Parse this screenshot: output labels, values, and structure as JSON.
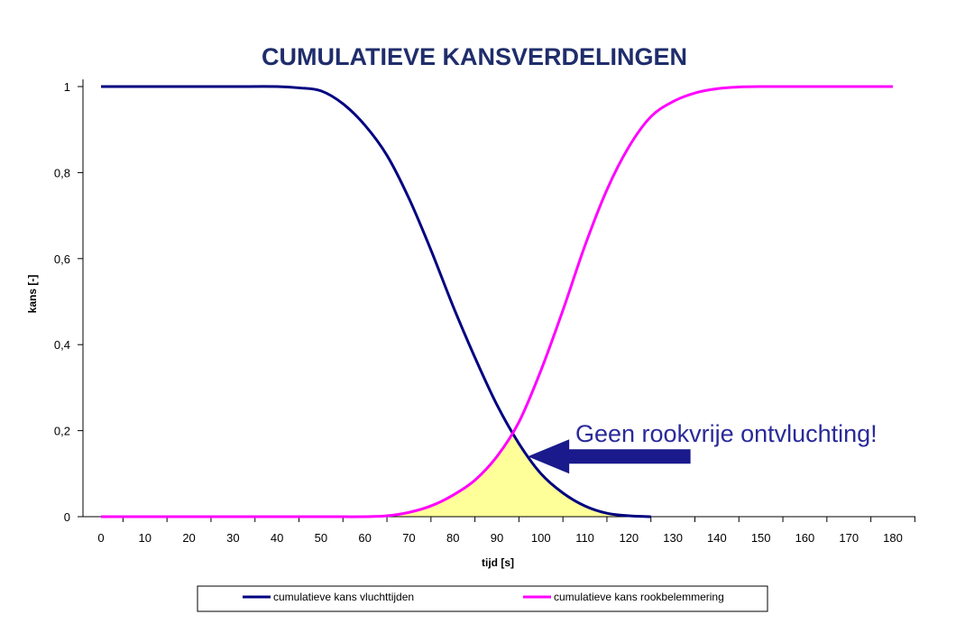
{
  "chart_data": {
    "type": "line",
    "title": "CUMULATIEVE KANSVERDELINGEN",
    "xlabel": "tijd [s]",
    "ylabel": "kans [-]",
    "xlim": [
      0,
      180
    ],
    "ylim": [
      0,
      1
    ],
    "x_ticks": [
      0,
      10,
      20,
      30,
      40,
      50,
      60,
      70,
      80,
      90,
      100,
      110,
      120,
      130,
      140,
      150,
      160,
      170,
      180
    ],
    "y_ticks": [
      {
        "value": 0,
        "label": "0"
      },
      {
        "value": 0.2,
        "label": "0,2"
      },
      {
        "value": 0.4,
        "label": "0,4"
      },
      {
        "value": 0.6,
        "label": "0,6"
      },
      {
        "value": 0.8,
        "label": "0,8"
      },
      {
        "value": 1,
        "label": "1"
      }
    ],
    "grid": false,
    "legend_position": "bottom",
    "series": [
      {
        "name": "cumulatieve kans vluchttijden",
        "color": "#000080",
        "x": [
          0,
          10,
          20,
          30,
          40,
          45,
          50,
          55,
          60,
          65,
          70,
          75,
          80,
          85,
          90,
          95,
          100,
          105,
          110,
          115,
          120,
          125
        ],
        "y": [
          1,
          1,
          1,
          1,
          1,
          0.997,
          0.99,
          0.96,
          0.91,
          0.84,
          0.74,
          0.62,
          0.49,
          0.37,
          0.26,
          0.17,
          0.1,
          0.055,
          0.025,
          0.008,
          0.002,
          0
        ]
      },
      {
        "name": "cumulatieve kans rookbelemmering",
        "color": "#ff00ff",
        "x": [
          0,
          10,
          20,
          30,
          40,
          50,
          60,
          65,
          70,
          75,
          80,
          85,
          90,
          95,
          100,
          105,
          110,
          115,
          120,
          125,
          130,
          135,
          140,
          145,
          150,
          160,
          170,
          180
        ],
        "y": [
          0,
          0,
          0,
          0,
          0,
          0,
          0,
          0.002,
          0.01,
          0.025,
          0.05,
          0.085,
          0.14,
          0.22,
          0.34,
          0.48,
          0.63,
          0.76,
          0.86,
          0.93,
          0.965,
          0.985,
          0.995,
          0.999,
          1,
          1,
          1,
          1
        ]
      }
    ],
    "annotation": {
      "text": "Geen rookvrije ontvluchting!",
      "arrow_color": "#1a1a8c",
      "arrow_tip": {
        "x": 97,
        "y": 0.14
      },
      "arrow_tail": {
        "x": 134,
        "y": 0.14
      },
      "shaded_region_color": "#ffff99"
    }
  }
}
